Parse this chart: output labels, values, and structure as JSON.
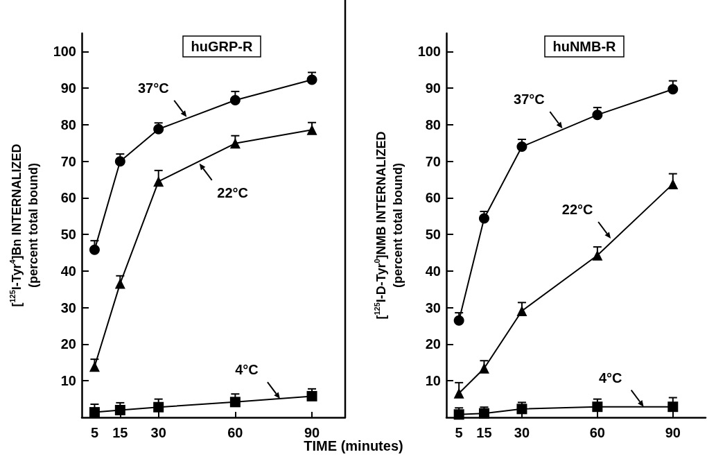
{
  "chart_data": [
    {
      "type": "line",
      "title": "huGRP-R",
      "xlabel": "TIME (minutes)",
      "ylabel": "[$^{125}$I-Tyr$^{4}$]Bn INTERNALIZED\n(percent total bound)",
      "x": [
        5,
        15,
        30,
        60,
        90
      ],
      "xlim": [
        0,
        103
      ],
      "xticks": [
        5,
        15,
        30,
        60,
        90
      ],
      "ylim": [
        0,
        105
      ],
      "yticks": [
        10,
        20,
        30,
        40,
        50,
        60,
        70,
        80,
        90,
        100
      ],
      "grid": false,
      "line_style": "solid",
      "series": [
        {
          "color": "#000000",
          "marker": "circle",
          "values": [
            45.8,
            70,
            78.8,
            86.7,
            92.3
          ],
          "errors": [
            [
              45.8,
              48.3
            ],
            [
              70,
              72
            ],
            [
              78.8,
              80.5
            ],
            [
              86.7,
              89.1
            ],
            [
              92.3,
              94.3
            ]
          ]
        },
        {
          "color": "#000000",
          "marker": "triangle",
          "values": [
            13.9,
            36.6,
            64.5,
            74.9,
            78.6
          ],
          "errors": [
            [
              13.9,
              15.9
            ],
            [
              36.6,
              38.7
            ],
            [
              64.5,
              67.5
            ],
            [
              74.9,
              77
            ],
            [
              78.6,
              80.6
            ]
          ]
        },
        {
          "color": "#000000",
          "marker": "square",
          "values": [
            1.4,
            2,
            2.8,
            4.2,
            5.8
          ],
          "errors": [
            [
              1.4,
              3.6
            ],
            [
              2,
              4
            ],
            [
              2.8,
              5
            ],
            [
              4.2,
              6.4
            ],
            [
              5.8,
              7.8
            ]
          ]
        }
      ],
      "annotations": [
        {
          "text": "37°C",
          "x": 41,
          "y": 82.1
        },
        {
          "text": "22°C",
          "x": 46,
          "y": 69.4
        },
        {
          "text": "4°C",
          "x": 77.5,
          "y": 5.1
        }
      ]
    },
    {
      "type": "line",
      "title": "huNMB-R",
      "ylabel": "[$^{125}$I-D-Tyr$^{0}$]NMB INTERNALIZED\n(percent total bound)",
      "x": [
        5,
        15,
        30,
        60,
        90
      ],
      "xlim": [
        0,
        103
      ],
      "xticks": [
        5,
        15,
        30,
        60,
        90
      ],
      "ylim": [
        0,
        105
      ],
      "yticks": [
        10,
        20,
        30,
        40,
        50,
        60,
        70,
        80,
        90,
        100
      ],
      "grid": false,
      "line_style": "solid",
      "series": [
        {
          "color": "#000000",
          "marker": "circle",
          "values": [
            26.5,
            54.4,
            74,
            82.7,
            89.7
          ],
          "errors": [
            [
              26.5,
              28.6
            ],
            [
              54.4,
              56.3
            ],
            [
              74,
              76
            ],
            [
              82.7,
              84.7
            ],
            [
              89.7,
              92
            ]
          ]
        },
        {
          "color": "#000000",
          "marker": "triangle",
          "values": [
            6.6,
            13.4,
            29.1,
            44.3,
            63.8
          ],
          "errors": [
            [
              6.6,
              9.5
            ],
            [
              13.4,
              15.5
            ],
            [
              29.1,
              31.4
            ],
            [
              44.3,
              46.6
            ],
            [
              63.8,
              66.6
            ]
          ]
        },
        {
          "color": "#000000",
          "marker": "square",
          "values": [
            0.8,
            1.1,
            2.3,
            2.9,
            2.9
          ],
          "errors": [
            [
              0.8,
              2.6
            ],
            [
              1.1,
              2.8
            ],
            [
              2.3,
              4.1
            ],
            [
              2.9,
              5
            ],
            [
              2.9,
              5.4
            ]
          ]
        }
      ],
      "annotations": [
        {
          "text": "37°C",
          "x": 46.1,
          "y": 79
        },
        {
          "text": "22°C",
          "x": 65.3,
          "y": 48.9
        },
        {
          "text": "4°C",
          "x": 78.4,
          "y": 2.9
        }
      ]
    }
  ]
}
